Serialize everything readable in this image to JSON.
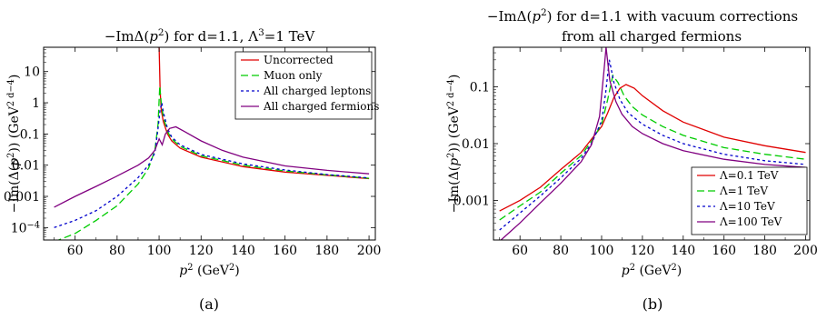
{
  "chart_data": [
    {
      "type": "line",
      "title_parts": [
        "−ImΔ(",
        "p",
        "2",
        ") for d=1.1, Λ",
        "3",
        "=1 TeV"
      ],
      "ylabel_parts": [
        "−Im(Δ(",
        "p",
        "2",
        ")) (GeV",
        "2 d−4",
        ")"
      ],
      "xlabel_parts": [
        "p",
        "2",
        " (GeV",
        "2",
        ")"
      ],
      "caption": "(a)",
      "x_scale": "linear",
      "y_scale": "log",
      "xlim": [
        45,
        203
      ],
      "ylim": [
        4e-05,
        60
      ],
      "x_ticks": [
        60,
        80,
        100,
        120,
        140,
        160,
        180,
        200
      ],
      "y_ticks": [
        {
          "value": 10,
          "label": "10"
        },
        {
          "value": 1,
          "label": "1"
        },
        {
          "value": 0.1,
          "label": "0.1"
        },
        {
          "value": 0.01,
          "label": "0.01"
        },
        {
          "value": 0.001,
          "label": "0.001"
        },
        {
          "value": 0.0001,
          "label": "10",
          "sup": "−4"
        }
      ],
      "legend_position": "top-right",
      "series": [
        {
          "name": "Uncorrected",
          "color": "#e00000",
          "dash": "solid",
          "x": [
            99.2,
            99.6,
            100.0,
            100.5,
            101,
            102,
            104,
            106,
            110,
            120,
            140,
            160,
            180,
            200
          ],
          "y": [
            60,
            60,
            60,
            2.5,
            0.6,
            0.25,
            0.1,
            0.06,
            0.035,
            0.018,
            0.009,
            0.006,
            0.0047,
            0.0037
          ]
        },
        {
          "name": "Muon only",
          "color": "#00cc00",
          "dash": "8,4",
          "x": [
            50,
            60,
            70,
            80,
            90,
            95,
            98,
            99.5,
            100.3,
            101,
            102,
            104,
            106,
            110,
            120,
            140,
            160,
            180,
            200
          ],
          "y": [
            3.5e-05,
            6.5e-05,
            0.00017,
            0.0005,
            0.0025,
            0.008,
            0.03,
            0.2,
            3.5,
            1.0,
            0.35,
            0.12,
            0.07,
            0.04,
            0.02,
            0.01,
            0.0065,
            0.0049,
            0.0038
          ]
        },
        {
          "name": "All charged leptons",
          "color": "#0000cc",
          "dash": "3,3",
          "x": [
            50,
            60,
            70,
            80,
            90,
            95,
            98,
            99.5,
            100.5,
            101.3,
            102,
            104,
            106,
            110,
            120,
            140,
            160,
            180,
            200
          ],
          "y": [
            0.0001,
            0.00017,
            0.00035,
            0.001,
            0.004,
            0.01,
            0.025,
            0.15,
            0.6,
            1.0,
            0.5,
            0.15,
            0.08,
            0.045,
            0.022,
            0.011,
            0.007,
            0.005,
            0.0039
          ]
        },
        {
          "name": "All charged fermions",
          "color": "#800080",
          "dash": "solid",
          "x": [
            50,
            60,
            70,
            80,
            90,
            95,
            98,
            100,
            101.5,
            103,
            105,
            108,
            112,
            120,
            130,
            140,
            160,
            180,
            200
          ],
          "y": [
            0.00045,
            0.001,
            0.0021,
            0.0045,
            0.01,
            0.017,
            0.03,
            0.07,
            0.045,
            0.1,
            0.15,
            0.17,
            0.12,
            0.06,
            0.03,
            0.018,
            0.0095,
            0.0068,
            0.0053
          ]
        }
      ]
    },
    {
      "type": "line",
      "title_line1_parts": [
        "−ImΔ(",
        "p",
        "2",
        ") for d=1.1 with vacuum corrections"
      ],
      "title_line2": "from all charged fermions",
      "ylabel_parts": [
        "−Im(Δ(",
        "p",
        "2",
        ")) (GeV",
        "2 d−4",
        ")"
      ],
      "xlabel_parts": [
        "p",
        "2",
        " (GeV",
        "2",
        ")"
      ],
      "caption": "(b)",
      "x_scale": "linear",
      "y_scale": "log",
      "xlim": [
        47,
        202
      ],
      "ylim": [
        0.0002,
        0.5
      ],
      "x_ticks": [
        60,
        80,
        100,
        120,
        140,
        160,
        180,
        200
      ],
      "y_ticks": [
        {
          "value": 0.1,
          "label": "0.1"
        },
        {
          "value": 0.01,
          "label": "0.01"
        },
        {
          "value": 0.001,
          "label": "0.001"
        }
      ],
      "legend_position": "bottom-right",
      "series": [
        {
          "name": "Λ=0.1 TeV",
          "color": "#e00000",
          "dash": "solid",
          "x": [
            50,
            60,
            70,
            80,
            90,
            95,
            100,
            103,
            106,
            109,
            112,
            116,
            120,
            130,
            140,
            160,
            180,
            200
          ],
          "y": [
            0.00065,
            0.001,
            0.0017,
            0.0035,
            0.007,
            0.012,
            0.02,
            0.035,
            0.065,
            0.095,
            0.11,
            0.095,
            0.07,
            0.038,
            0.024,
            0.013,
            0.0092,
            0.007
          ]
        },
        {
          "name": "Λ=1 TeV",
          "color": "#00cc00",
          "dash": "8,4",
          "x": [
            50,
            60,
            70,
            80,
            90,
            95,
            100,
            103,
            105.5,
            108,
            111,
            115,
            120,
            130,
            140,
            160,
            180,
            200
          ],
          "y": [
            0.00045,
            0.0008,
            0.0014,
            0.003,
            0.0062,
            0.011,
            0.022,
            0.06,
            0.16,
            0.12,
            0.07,
            0.045,
            0.032,
            0.02,
            0.014,
            0.0085,
            0.0065,
            0.0053
          ]
        },
        {
          "name": "Λ=10 TeV",
          "color": "#0000cc",
          "dash": "3,3",
          "x": [
            50,
            60,
            70,
            80,
            90,
            95,
            100,
            102,
            103.8,
            106,
            109,
            113,
            120,
            130,
            140,
            160,
            180,
            200
          ],
          "y": [
            0.0003,
            0.0006,
            0.0012,
            0.0025,
            0.0055,
            0.01,
            0.025,
            0.08,
            0.3,
            0.12,
            0.06,
            0.035,
            0.022,
            0.014,
            0.01,
            0.0065,
            0.005,
            0.0043
          ]
        },
        {
          "name": "Λ=100 TeV",
          "color": "#800080",
          "dash": "solid",
          "x": [
            50,
            60,
            70,
            80,
            90,
            95,
            99,
            101.2,
            102.2,
            104,
            107,
            110,
            115,
            120,
            130,
            140,
            160,
            180,
            200
          ],
          "y": [
            0.00019,
            0.0004,
            0.0009,
            0.002,
            0.0048,
            0.0095,
            0.03,
            0.2,
            0.5,
            0.13,
            0.055,
            0.033,
            0.02,
            0.015,
            0.01,
            0.0075,
            0.0053,
            0.0043,
            0.0038
          ]
        }
      ]
    }
  ]
}
